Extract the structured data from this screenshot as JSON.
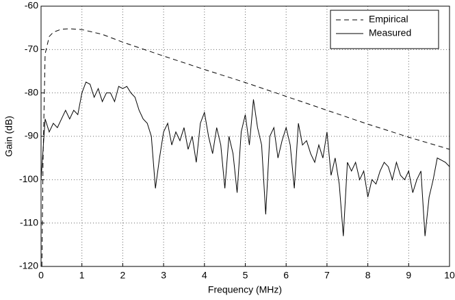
{
  "chart_data": {
    "type": "line",
    "xlabel": "Frequency (MHz)",
    "ylabel": "Gain (dB)",
    "xlim": [
      0,
      10
    ],
    "ylim": [
      -120,
      -60
    ],
    "xticks": [
      0,
      1,
      2,
      3,
      4,
      5,
      6,
      7,
      8,
      9,
      10
    ],
    "yticks": [
      -120,
      -110,
      -100,
      -90,
      -80,
      -70,
      -60
    ],
    "grid": true,
    "legend": "upper right",
    "series": [
      {
        "name": "Empirical",
        "color": "#000000",
        "style": "dashed",
        "x": [
          0.02,
          0.05,
          0.1,
          0.2,
          0.3,
          0.5,
          0.7,
          1,
          1.5,
          2,
          3,
          4,
          5,
          6,
          7,
          8,
          9,
          10
        ],
        "values": [
          -120,
          -95,
          -71,
          -67,
          -66,
          -65.3,
          -65.2,
          -65.4,
          -66.5,
          -68.3,
          -71.5,
          -74.6,
          -77.6,
          -80.8,
          -84,
          -87.2,
          -90.2,
          -93
        ]
      },
      {
        "name": "Measured",
        "color": "#000000",
        "style": "solid",
        "x": [
          0,
          0.1,
          0.2,
          0.3,
          0.4,
          0.5,
          0.6,
          0.7,
          0.8,
          0.9,
          1,
          1.1,
          1.2,
          1.3,
          1.4,
          1.5,
          1.6,
          1.7,
          1.8,
          1.9,
          2,
          2.1,
          2.2,
          2.3,
          2.4,
          2.5,
          2.6,
          2.7,
          2.8,
          2.9,
          3,
          3.1,
          3.2,
          3.3,
          3.4,
          3.5,
          3.6,
          3.7,
          3.8,
          3.9,
          4,
          4.1,
          4.2,
          4.3,
          4.4,
          4.5,
          4.6,
          4.7,
          4.8,
          4.9,
          5,
          5.1,
          5.2,
          5.3,
          5.4,
          5.5,
          5.6,
          5.7,
          5.8,
          5.9,
          6,
          6.1,
          6.2,
          6.3,
          6.4,
          6.5,
          6.6,
          6.7,
          6.8,
          6.9,
          7,
          7.1,
          7.2,
          7.3,
          7.4,
          7.5,
          7.6,
          7.7,
          7.8,
          7.9,
          8,
          8.1,
          8.2,
          8.3,
          8.4,
          8.5,
          8.6,
          8.7,
          8.8,
          8.9,
          9,
          9.1,
          9.2,
          9.3,
          9.4,
          9.5,
          9.6,
          9.7,
          9.8,
          9.9,
          10
        ],
        "values": [
          -100,
          -86,
          -89,
          -87,
          -88,
          -86,
          -84,
          -86,
          -84,
          -85,
          -80,
          -77.5,
          -78,
          -81,
          -79,
          -82,
          -80,
          -80,
          -82,
          -78.5,
          -79,
          -78.5,
          -80,
          -81,
          -84,
          -86,
          -87,
          -90,
          -102,
          -95,
          -89,
          -87,
          -92,
          -89,
          -91,
          -88,
          -93,
          -90,
          -96,
          -87,
          -84.5,
          -90,
          -94,
          -88,
          -92,
          -102,
          -90,
          -94,
          -103,
          -89,
          -85,
          -92,
          -81.5,
          -88,
          -92,
          -108,
          -90,
          -88,
          -95,
          -91,
          -88,
          -92,
          -102,
          -87,
          -92,
          -91,
          -94,
          -96,
          -92,
          -95,
          -89,
          -99,
          -95,
          -101,
          -113,
          -96,
          -98,
          -96,
          -100,
          -98,
          -104,
          -100,
          -101,
          -98,
          -96,
          -97,
          -100,
          -96,
          -99,
          -100,
          -98,
          -103,
          -100,
          -98,
          -113,
          -104,
          -100,
          -95,
          -95.5,
          -96,
          -97
        ]
      }
    ]
  }
}
